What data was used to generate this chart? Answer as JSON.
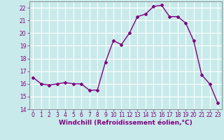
{
  "x": [
    0,
    1,
    2,
    3,
    4,
    5,
    6,
    7,
    8,
    9,
    10,
    11,
    12,
    13,
    14,
    15,
    16,
    17,
    18,
    19,
    20,
    21,
    22,
    23
  ],
  "y": [
    16.5,
    16.0,
    15.9,
    16.0,
    16.1,
    16.0,
    16.0,
    15.5,
    15.5,
    17.7,
    19.4,
    19.1,
    20.0,
    21.3,
    21.5,
    22.1,
    22.2,
    21.3,
    21.3,
    20.8,
    19.4,
    16.7,
    16.0,
    14.5
  ],
  "line_color": "#800080",
  "marker": "D",
  "marker_size": 2,
  "line_width": 1.0,
  "bg_color": "#c8eaea",
  "grid_color": "#ffffff",
  "xlabel": "Windchill (Refroidissement éolien,°C)",
  "xlabel_fontsize": 6.5,
  "xlim": [
    -0.5,
    23.5
  ],
  "ylim": [
    14,
    22.5
  ],
  "yticks": [
    14,
    15,
    16,
    17,
    18,
    19,
    20,
    21,
    22
  ],
  "xticks": [
    0,
    1,
    2,
    3,
    4,
    5,
    6,
    7,
    8,
    9,
    10,
    11,
    12,
    13,
    14,
    15,
    16,
    17,
    18,
    19,
    20,
    21,
    22,
    23
  ],
  "tick_fontsize": 5.5,
  "tick_color": "#800080",
  "axis_color": "#808080",
  "ylabel_fontsize": 6.0
}
